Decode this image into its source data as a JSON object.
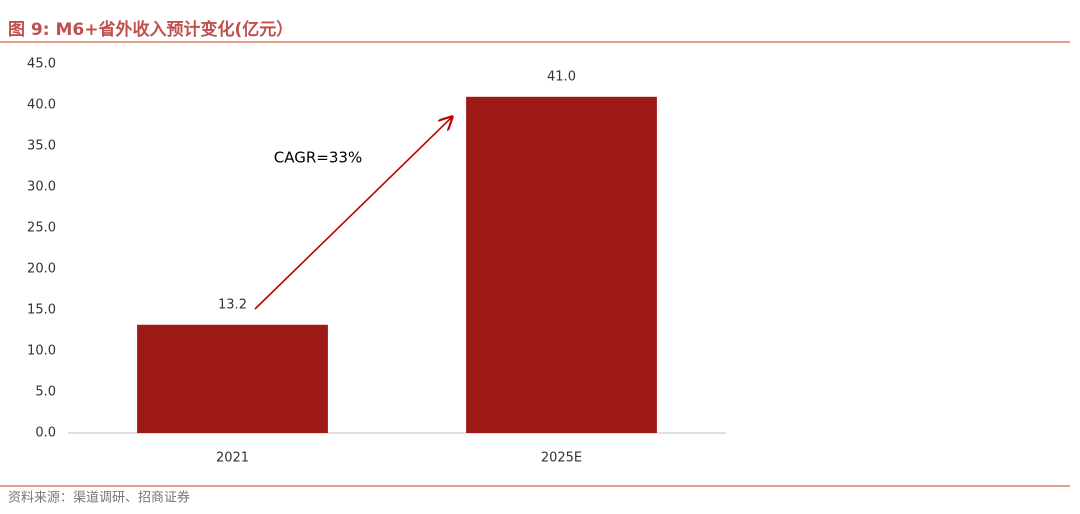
{
  "chart_data": {
    "type": "bar",
    "title": "图 9: M6+省外收入预计变化(亿元）",
    "source": "资料来源：渠道调研、招商证券",
    "annotation": "CAGR=33%",
    "categories": [
      "2021",
      "2025E"
    ],
    "values": [
      13.2,
      41
    ],
    "value_labels": [
      "13.2",
      "41.0"
    ],
    "color": "#9e1a17",
    "ylim": [
      0,
      45
    ],
    "yticks": [
      {
        "value": 0,
        "label": "0.0"
      },
      {
        "value": 5,
        "label": "5.0"
      },
      {
        "value": 10,
        "label": "10.0"
      },
      {
        "value": 15,
        "label": "15.0"
      },
      {
        "value": 20,
        "label": "20.0"
      },
      {
        "value": 25,
        "label": "25.0"
      },
      {
        "value": 30,
        "label": "30.0"
      },
      {
        "value": 35,
        "label": "35.0"
      },
      {
        "value": 40,
        "label": "40.0"
      },
      {
        "value": 45,
        "label": "45.0"
      }
    ],
    "grid": false
  }
}
